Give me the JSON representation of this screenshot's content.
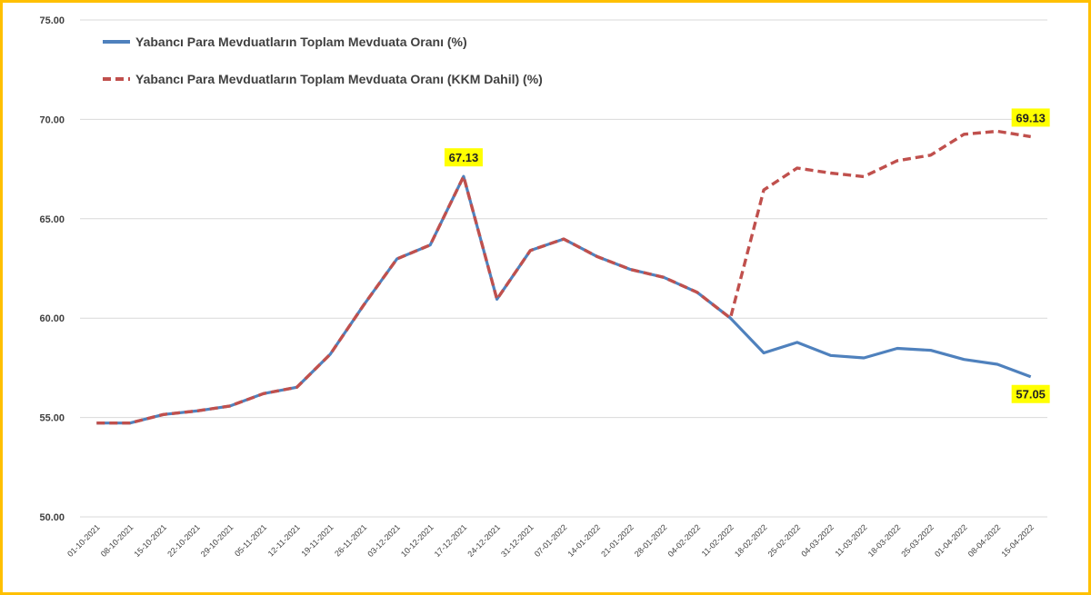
{
  "chart_data": {
    "type": "line",
    "title": "",
    "xlabel": "",
    "ylabel": "",
    "ylim": [
      50,
      75
    ],
    "yticks": [
      "50.00",
      "55.00",
      "60.00",
      "65.00",
      "70.00",
      "75.00"
    ],
    "grid": true,
    "legend_position": "top-left",
    "categories": [
      "01-10-2021",
      "08-10-2021",
      "15-10-2021",
      "22-10-2021",
      "29-10-2021",
      "05-11-2021",
      "12-11-2021",
      "19-11-2021",
      "26-11-2021",
      "03-12-2021",
      "10-12-2021",
      "17-12-2021",
      "24-12-2021",
      "31-12-2021",
      "07-01-2022",
      "14-01-2022",
      "21-01-2022",
      "28-01-2022",
      "04-02-2022",
      "11-02-2022",
      "18-02-2022",
      "25-02-2022",
      "04-03-2022",
      "11-03-2022",
      "18-03-2022",
      "25-03-2022",
      "01-04-2022",
      "08-04-2022",
      "15-04-2022"
    ],
    "series": [
      {
        "name": "Yabancı Para Mevduatların Toplam Mevduata Oranı (%)",
        "color": "#4F81BD",
        "style": "solid",
        "values": [
          54.72,
          54.72,
          55.15,
          55.33,
          55.58,
          56.2,
          56.52,
          58.18,
          60.65,
          62.98,
          63.68,
          67.13,
          60.95,
          63.4,
          63.98,
          63.1,
          62.45,
          62.05,
          61.3,
          60.0,
          58.25,
          58.78,
          58.12,
          58.0,
          58.48,
          58.38,
          57.92,
          57.68,
          57.05
        ]
      },
      {
        "name": "Yabancı Para Mevduatların Toplam Mevduata Oranı (KKM Dahil) (%)",
        "color": "#C0504D",
        "style": "dashed",
        "values": [
          54.72,
          54.72,
          55.15,
          55.33,
          55.58,
          56.2,
          56.52,
          58.18,
          60.65,
          62.98,
          63.68,
          67.13,
          60.95,
          63.4,
          63.98,
          63.1,
          62.45,
          62.05,
          61.3,
          60.0,
          66.45,
          67.55,
          67.3,
          67.12,
          67.92,
          68.2,
          69.25,
          69.4,
          69.13
        ]
      }
    ],
    "annotations": [
      {
        "text": "67.13",
        "category": "17-12-2021",
        "value": 67.13,
        "placement": "above",
        "background": "#FFFF00"
      },
      {
        "text": "69.13",
        "category": "15-04-2022",
        "value": 69.13,
        "placement": "above",
        "background": "#FFFF00"
      },
      {
        "text": "57.05",
        "category": "15-04-2022",
        "value": 57.05,
        "placement": "below",
        "background": "#FFFF00"
      }
    ]
  }
}
